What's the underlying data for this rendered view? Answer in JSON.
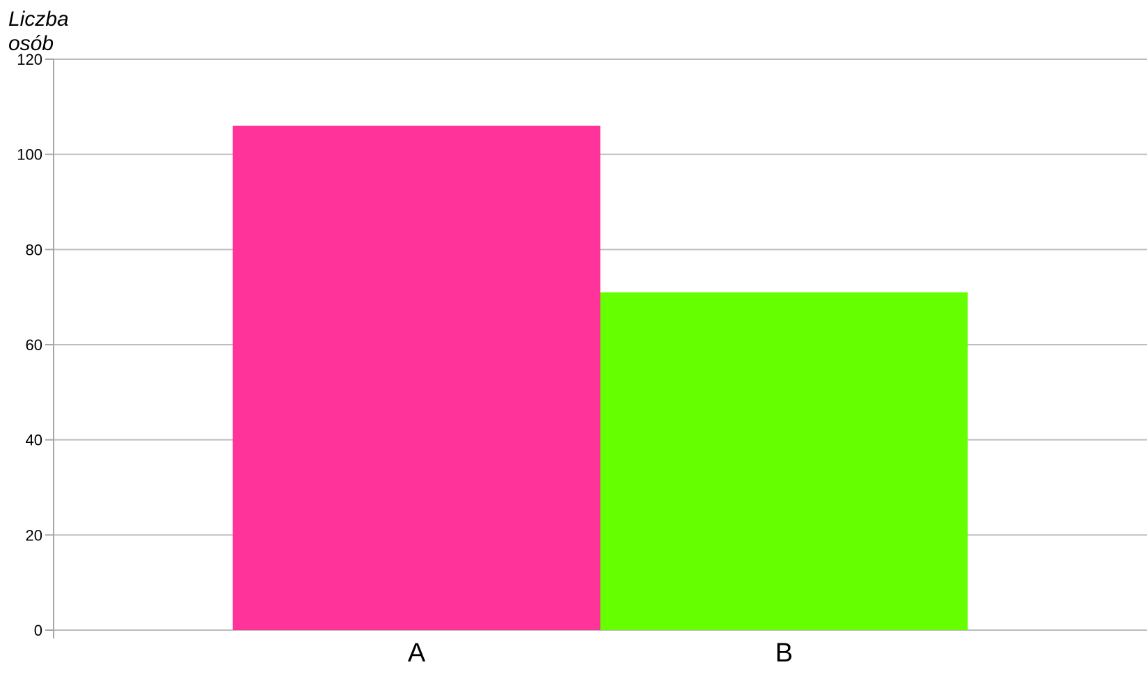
{
  "chart_data": {
    "type": "bar",
    "ylabel_lines": [
      "Liczba",
      "osób"
    ],
    "categories": [
      "A",
      "B"
    ],
    "values": [
      106,
      71
    ],
    "colors": [
      "#ff3399",
      "#66ff00"
    ],
    "ylim": [
      0,
      120
    ],
    "yticks": [
      0,
      20,
      40,
      60,
      80,
      100,
      120
    ],
    "grid": true
  }
}
